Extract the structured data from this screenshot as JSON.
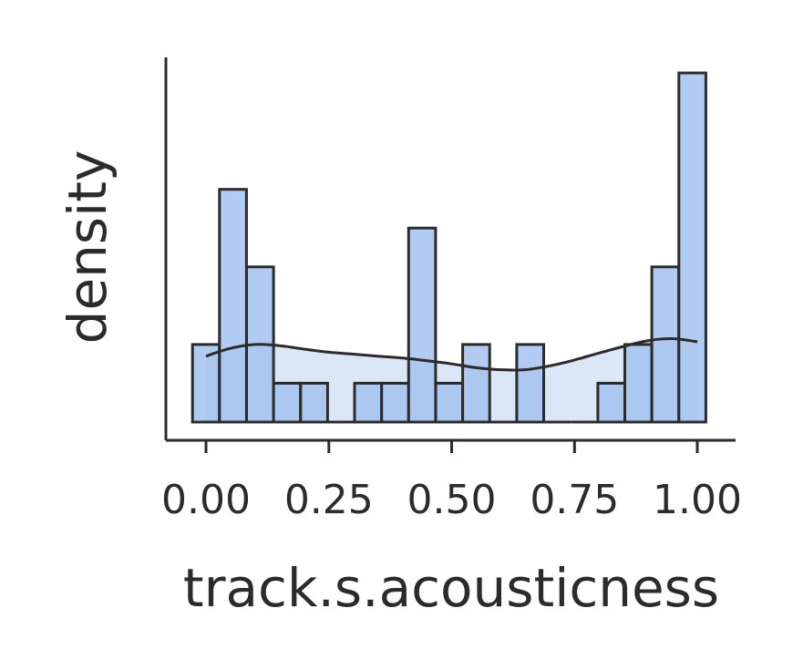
{
  "chart_data": {
    "type": "histogram",
    "xlabel": "track.s.acousticness",
    "ylabel": "density",
    "xlim": [
      -0.08,
      1.08
    ],
    "ylim": [
      0,
      9.5
    ],
    "x_ticks": [
      0.0,
      0.25,
      0.5,
      0.75,
      1.0
    ],
    "x_tick_labels": [
      "0.00",
      "0.25",
      "0.50",
      "0.75",
      "1.00"
    ],
    "y_ticks_shown": false,
    "grid": false,
    "legend": "none",
    "bin_edges": [
      -0.0275,
      0.0275,
      0.0825,
      0.1375,
      0.1925,
      0.2475,
      0.3025,
      0.3575,
      0.4125,
      0.4675,
      0.5225,
      0.5775,
      0.6325,
      0.6875,
      0.7425,
      0.7975,
      0.8525,
      0.9075,
      0.9625,
      1.0175
    ],
    "density_values": [
      2.0,
      6.0,
      4.0,
      1.0,
      1.0,
      0.0,
      1.0,
      1.0,
      5.0,
      1.0,
      2.0,
      0.0,
      2.0,
      0.0,
      0.0,
      1.0,
      2.0,
      4.0,
      9.0
    ],
    "kde": {
      "x": [
        0.0,
        0.05,
        0.1,
        0.15,
        0.2,
        0.25,
        0.3,
        0.35,
        0.4,
        0.45,
        0.5,
        0.55,
        0.6,
        0.65,
        0.7,
        0.75,
        0.8,
        0.85,
        0.9,
        0.95,
        1.0
      ],
      "y": [
        1.7,
        1.9,
        2.0,
        1.97,
        1.88,
        1.8,
        1.75,
        1.7,
        1.65,
        1.58,
        1.5,
        1.4,
        1.35,
        1.35,
        1.45,
        1.6,
        1.78,
        1.95,
        2.1,
        2.15,
        2.07
      ]
    },
    "colors": {
      "bar_fill": "#a3c2f0",
      "bar_stroke": "#2b2b2b",
      "kde_fill": "#dbe6f7",
      "kde_line": "#2b2b2b",
      "axis": "#2b2b2b"
    }
  }
}
